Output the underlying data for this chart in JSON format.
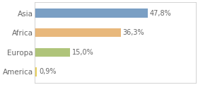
{
  "categories": [
    "Asia",
    "Africa",
    "Europa",
    "America"
  ],
  "values": [
    47.8,
    36.3,
    15.0,
    0.9
  ],
  "labels": [
    "47,8%",
    "36,3%",
    "15,0%",
    "0,9%"
  ],
  "bar_colors": [
    "#7a9fc4",
    "#e8b87c",
    "#afc47a",
    "#e8d060"
  ],
  "background_color": "#ffffff",
  "plot_bg_color": "#ffffff",
  "border_color": "#cccccc",
  "xlim": [
    0,
    68
  ],
  "bar_height": 0.45,
  "label_fontsize": 7,
  "category_fontsize": 7.5,
  "text_color": "#666666"
}
